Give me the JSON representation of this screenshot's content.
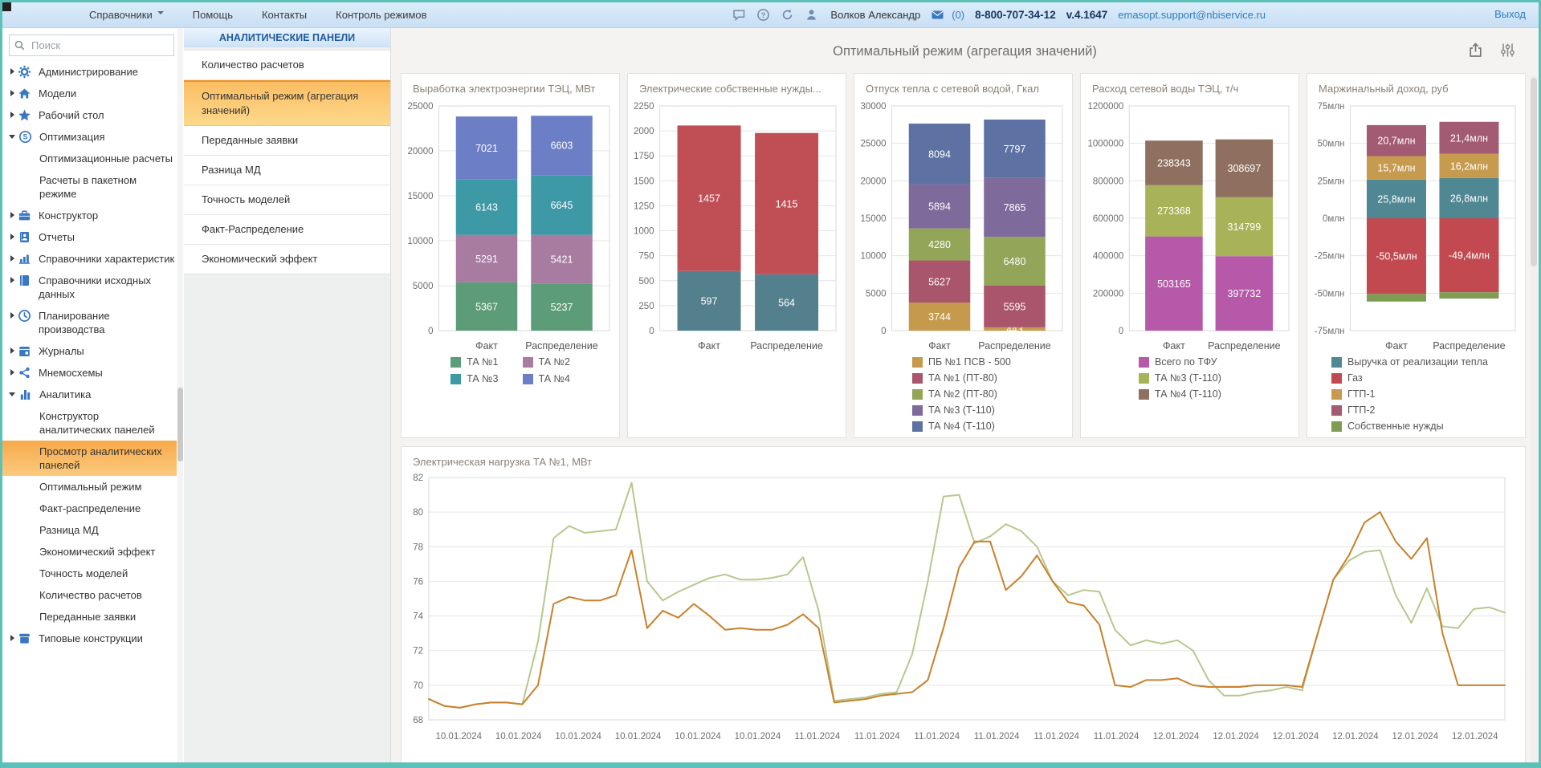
{
  "topbar": {
    "menu": [
      {
        "label": "Справочники",
        "has_caret": true
      },
      {
        "label": "Помощь"
      },
      {
        "label": "Контакты"
      },
      {
        "label": "Контроль режимов"
      }
    ],
    "icons": [
      "chat-icon",
      "help-icon",
      "refresh-icon",
      "user-icon"
    ],
    "user_name": "Волков Александр",
    "mail_count": "(0)",
    "phone": "8-800-707-34-12",
    "version": "v.4.1647",
    "email": "emasopt.support@nbiservice.ru",
    "logout_label": "Выход"
  },
  "sidebar": {
    "search_placeholder": "Поиск",
    "items": [
      {
        "label": "Администрирование",
        "icon": "gear-icon",
        "state": "collapsed"
      },
      {
        "label": "Модели",
        "icon": "home-icon",
        "state": "collapsed"
      },
      {
        "label": "Рабочий стол",
        "icon": "star-icon",
        "state": "collapsed"
      },
      {
        "label": "Оптимизация",
        "icon": "coin-icon",
        "state": "expanded",
        "children": [
          {
            "label": "Оптимизационные расчеты"
          },
          {
            "label": "Расчеты в пакетном режиме"
          }
        ]
      },
      {
        "label": "Конструктор",
        "icon": "briefcase-icon",
        "state": "collapsed"
      },
      {
        "label": "Отчеты",
        "icon": "report-icon",
        "state": "collapsed"
      },
      {
        "label": "Справочники характеристик",
        "icon": "chart-icon",
        "state": "collapsed"
      },
      {
        "label": "Справочники исходных данных",
        "icon": "book-icon",
        "state": "collapsed"
      },
      {
        "label": "Планирование производства",
        "icon": "clock-icon",
        "state": "collapsed"
      },
      {
        "label": "Журналы",
        "icon": "calendar-icon",
        "state": "collapsed"
      },
      {
        "label": "Мнемосхемы",
        "icon": "share-icon",
        "state": "collapsed"
      },
      {
        "label": "Аналитика",
        "icon": "analytics-icon",
        "state": "expanded",
        "children": [
          {
            "label": "Конструктор аналитических панелей"
          },
          {
            "label": "Просмотр аналитических панелей",
            "selected": true
          },
          {
            "label": "Оптимальный режим"
          },
          {
            "label": "Факт-распределение"
          },
          {
            "label": "Разница МД"
          },
          {
            "label": "Экономический эффект"
          },
          {
            "label": "Точность моделей"
          },
          {
            "label": "Количество расчетов"
          },
          {
            "label": "Переданные заявки"
          }
        ]
      },
      {
        "label": "Типовые конструкции",
        "icon": "box-icon",
        "state": "collapsed"
      }
    ]
  },
  "panel": {
    "header": "АНАЛИТИЧЕСКИЕ ПАНЕЛИ",
    "items": [
      {
        "label": "Количество расчетов"
      },
      {
        "label": "Оптимальный режим (агрегация значений)",
        "selected": true
      },
      {
        "label": "Переданные заявки"
      },
      {
        "label": "Разница МД"
      },
      {
        "label": "Точность моделей"
      },
      {
        "label": "Факт-Распределение"
      },
      {
        "label": "Экономический эффект"
      }
    ]
  },
  "main": {
    "title": "Оптимальный режим (агрегация значений)",
    "icons": [
      "export-icon",
      "filters-icon"
    ]
  },
  "chart_data": [
    {
      "type": "bar",
      "stacked": true,
      "title": "Выработка электроэнергии ТЭЦ, МВт",
      "categories": [
        "Факт",
        "Распределение"
      ],
      "ylim": [
        0,
        25000
      ],
      "ticks": [
        {
          "v": 0,
          "l": "0"
        },
        {
          "v": 5000,
          "l": "5000"
        },
        {
          "v": 10000,
          "l": "10000"
        },
        {
          "v": 15000,
          "l": "15000"
        },
        {
          "v": 20000,
          "l": "20000"
        },
        {
          "v": 25000,
          "l": "25000"
        }
      ],
      "series": [
        {
          "name": "ТА №1",
          "color": "#5d9c78",
          "values": [
            5367,
            5237
          ],
          "labels": [
            "5367",
            "5237"
          ]
        },
        {
          "name": "ТА №2",
          "color": "#a87ba1",
          "values": [
            5291,
            5421
          ],
          "labels": [
            "5291",
            "5421"
          ]
        },
        {
          "name": "ТА №3",
          "color": "#3e99a7",
          "values": [
            6143,
            6645
          ],
          "labels": [
            "6143",
            "6645"
          ]
        },
        {
          "name": "ТА №4",
          "color": "#6b7ec6",
          "values": [
            7021,
            6603
          ],
          "labels": [
            "7021",
            "6603"
          ]
        }
      ],
      "legend": "grid2"
    },
    {
      "type": "bar",
      "stacked": true,
      "title": "Электрические собственные нужды...",
      "categories": [
        "Факт",
        "Распределение"
      ],
      "ylim": [
        0,
        2250
      ],
      "ticks": [
        {
          "v": 0,
          "l": "0"
        },
        {
          "v": 250,
          "l": "250"
        },
        {
          "v": 500,
          "l": "500"
        },
        {
          "v": 750,
          "l": "750"
        },
        {
          "v": 1000,
          "l": "1000"
        },
        {
          "v": 1250,
          "l": "1250"
        },
        {
          "v": 1500,
          "l": "1500"
        },
        {
          "v": 1750,
          "l": "1750"
        },
        {
          "v": 2000,
          "l": "2000"
        },
        {
          "v": 2250,
          "l": "2250"
        }
      ],
      "series": [
        {
          "color": "#54808e",
          "values": [
            597,
            564
          ],
          "labels": [
            "597",
            "564"
          ]
        },
        {
          "color": "#c04e55",
          "values": [
            1457,
            1415
          ],
          "labels": [
            "1457",
            "1415"
          ]
        }
      ],
      "legend": "none"
    },
    {
      "type": "bar",
      "stacked": true,
      "title": "Отпуск тепла с сетевой водой, Гкал",
      "categories": [
        "Факт",
        "Распределение"
      ],
      "ylim": [
        0,
        30000
      ],
      "ticks": [
        {
          "v": 0,
          "l": "0"
        },
        {
          "v": 5000,
          "l": "5000"
        },
        {
          "v": 10000,
          "l": "10000"
        },
        {
          "v": 15000,
          "l": "15000"
        },
        {
          "v": 20000,
          "l": "20000"
        },
        {
          "v": 25000,
          "l": "25000"
        },
        {
          "v": 30000,
          "l": "30000"
        }
      ],
      "series": [
        {
          "name": "ПБ №1 ПСВ - 500",
          "color": "#c59a4d",
          "values": [
            3744,
            443
          ],
          "labels": [
            "3744",
            "443"
          ]
        },
        {
          "name": "ТА №1  (ПТ-80)",
          "color": "#a9556b",
          "values": [
            5627,
            5595
          ],
          "labels": [
            "5627",
            "5595"
          ]
        },
        {
          "name": "ТА №2  (ПТ-80)",
          "color": "#93a558",
          "values": [
            4280,
            6480
          ],
          "labels": [
            "4280",
            "6480"
          ]
        },
        {
          "name": "ТА №3  (Т-110)",
          "color": "#7f6a9c",
          "values": [
            5894,
            7865
          ],
          "labels": [
            "5894",
            "7865"
          ]
        },
        {
          "name": "ТА №4  (Т-110)",
          "color": "#5d71a2",
          "values": [
            8094,
            7797
          ],
          "labels": [
            "8094",
            "7797"
          ]
        }
      ],
      "legend": "column"
    },
    {
      "type": "bar",
      "stacked": true,
      "title": "Расход сетевой воды ТЭЦ, т/ч",
      "categories": [
        "Факт",
        "Распределение"
      ],
      "ylim": [
        0,
        1200000
      ],
      "ticks": [
        {
          "v": 0,
          "l": "0"
        },
        {
          "v": 200000,
          "l": "200000"
        },
        {
          "v": 400000,
          "l": "400000"
        },
        {
          "v": 600000,
          "l": "600000"
        },
        {
          "v": 800000,
          "l": "800000"
        },
        {
          "v": 1000000,
          "l": "1000000"
        },
        {
          "v": 1200000,
          "l": "1200000"
        }
      ],
      "series": [
        {
          "name": "Всего по ТФУ",
          "color": "#b559a8",
          "values": [
            503165,
            397732
          ],
          "labels": [
            "503165",
            "397732"
          ]
        },
        {
          "name": "ТА №3  (Т-110)",
          "color": "#a8b259",
          "values": [
            273368,
            314799
          ],
          "labels": [
            "273368",
            "314799"
          ]
        },
        {
          "name": "ТА №4  (Т-110)",
          "color": "#8f7060",
          "values": [
            238343,
            308697
          ],
          "labels": [
            "238343",
            "308697"
          ]
        }
      ],
      "legend": "column"
    },
    {
      "type": "bar",
      "stacked": true,
      "title": "Маржинальный доход, руб",
      "categories": [
        "Факт",
        "Распределение"
      ],
      "ylim": [
        -75,
        75
      ],
      "ticks": [
        {
          "v": -75,
          "l": "-75млн"
        },
        {
          "v": -50,
          "l": "-50млн"
        },
        {
          "v": -25,
          "l": "-25млн"
        },
        {
          "v": 0,
          "l": "0млн"
        },
        {
          "v": 25,
          "l": "25млн"
        },
        {
          "v": 50,
          "l": "50млн"
        },
        {
          "v": 75,
          "l": "75млн"
        }
      ],
      "series": [
        {
          "name": "Выручка от реализации тепла",
          "color": "#4f8793",
          "values": [
            25.8,
            26.8
          ],
          "labels": [
            "25,8млн",
            "26,8млн"
          ]
        },
        {
          "name": "ГТП-1",
          "color": "#c79b4f",
          "values": [
            15.7,
            16.2
          ],
          "labels": [
            "15,7млн",
            "16,2млн"
          ]
        },
        {
          "name": "ГТП-2",
          "color": "#a35a73",
          "values": [
            20.7,
            21.4
          ],
          "labels": [
            "20,7млн",
            "21,4млн"
          ]
        },
        {
          "name": "Газ",
          "color": "#c2494f",
          "values": [
            -50.5,
            -49.4
          ],
          "labels": [
            "-50,5млн",
            "-49,4млн"
          ]
        },
        {
          "name": "Собственные нужды",
          "color": "#7f9c55",
          "values": [
            -5.1,
            -4.2
          ],
          "labels": [
            "",
            ""
          ]
        }
      ],
      "legend_order": [
        0,
        3,
        1,
        2,
        4
      ],
      "legend": "column"
    },
    {
      "type": "line",
      "title": "Электрическая нагрузка ТА №1, МВт",
      "ylim": [
        68,
        82
      ],
      "ticks": [
        {
          "v": 68,
          "l": "68"
        },
        {
          "v": 70,
          "l": "70"
        },
        {
          "v": 72,
          "l": "72"
        },
        {
          "v": 74,
          "l": "74"
        },
        {
          "v": 76,
          "l": "76"
        },
        {
          "v": 78,
          "l": "78"
        },
        {
          "v": 80,
          "l": "80"
        },
        {
          "v": 82,
          "l": "82"
        }
      ],
      "x_labels": [
        "10.01.2024",
        "10.01.2024",
        "10.01.2024",
        "10.01.2024",
        "10.01.2024",
        "10.01.2024",
        "11.01.2024",
        "11.01.2024",
        "11.01.2024",
        "11.01.2024",
        "11.01.2024",
        "11.01.2024",
        "12.01.2024",
        "12.01.2024",
        "12.01.2024",
        "12.01.2024",
        "12.01.2024",
        "12.01.2024"
      ],
      "series": [
        {
          "color": "#b6c88e",
          "values": [
            69.2,
            68.8,
            68.7,
            68.9,
            69.0,
            69.0,
            68.9,
            72.5,
            78.5,
            79.2,
            78.8,
            78.9,
            79.0,
            81.7,
            76.0,
            74.9,
            75.4,
            75.8,
            76.2,
            76.4,
            76.1,
            76.1,
            76.2,
            76.4,
            77.4,
            74.3,
            69.1,
            69.2,
            69.3,
            69.5,
            69.6,
            71.8,
            76.0,
            80.9,
            81.0,
            78.2,
            78.6,
            79.3,
            78.9,
            78.0,
            76.0,
            75.2,
            75.5,
            75.4,
            73.2,
            72.3,
            72.6,
            72.4,
            72.6,
            72.0,
            70.3,
            69.4,
            69.4,
            69.6,
            69.7,
            69.9,
            69.7,
            73.0,
            76.1,
            77.2,
            77.7,
            77.8,
            75.2,
            73.6,
            75.6,
            73.4,
            73.3,
            74.4,
            74.5,
            74.2
          ]
        },
        {
          "color": "#c8812b",
          "values": [
            69.2,
            68.8,
            68.7,
            68.9,
            69.0,
            69.0,
            68.9,
            70.0,
            74.7,
            75.1,
            74.9,
            74.9,
            75.2,
            77.8,
            73.3,
            74.3,
            73.9,
            74.7,
            74.0,
            73.2,
            73.3,
            73.2,
            73.2,
            73.5,
            74.1,
            73.3,
            69.0,
            69.1,
            69.2,
            69.4,
            69.5,
            69.6,
            70.3,
            73.3,
            76.8,
            78.3,
            78.3,
            75.5,
            76.3,
            77.5,
            76.0,
            74.8,
            74.6,
            73.5,
            70.0,
            69.9,
            70.3,
            70.3,
            70.4,
            70.0,
            69.9,
            69.9,
            69.9,
            70.0,
            70.0,
            70.0,
            69.9,
            73.0,
            76.1,
            77.5,
            79.4,
            80.0,
            78.3,
            77.3,
            78.5,
            73.0,
            70.0,
            70.0,
            70.0,
            70.0
          ]
        }
      ]
    }
  ]
}
